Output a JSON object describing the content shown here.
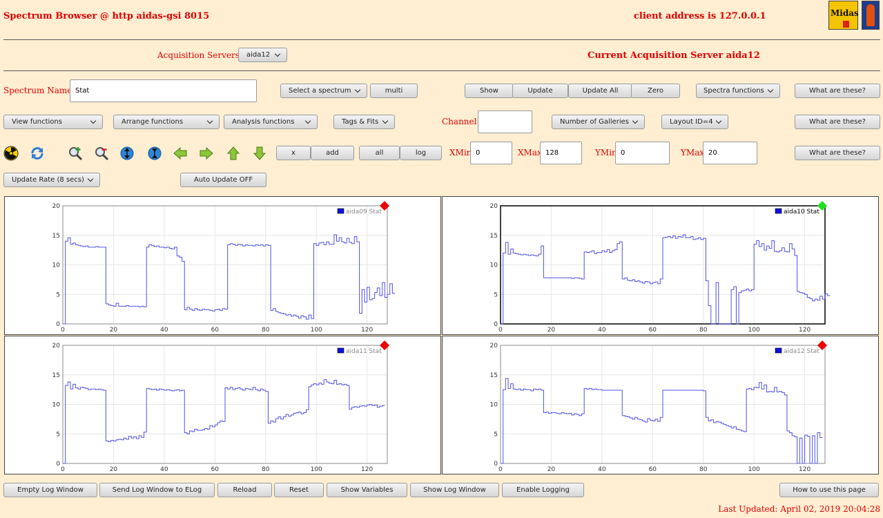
{
  "header": {
    "title": "Spectrum Browser @ http aidas-gsi 8015",
    "client_address": "client address is 127.0.0.1",
    "logo_label": "Midas"
  },
  "servers": {
    "label": "Acquisition Servers",
    "selected": "aida12",
    "current": "Current Acquisition Server aida12"
  },
  "row1": {
    "spectrum_label": "Spectrum Name:",
    "spectrum_value": "Stat",
    "select_spectrum": "Select a spectrum",
    "multi": "multi",
    "show": "Show",
    "update": "Update",
    "update_all": "Update All",
    "zero": "Zero",
    "spectra_functions": "Spectra functions",
    "what": "What are these?"
  },
  "row2": {
    "view": "View functions",
    "arrange": "Arrange functions",
    "analysis": "Analysis functions",
    "tags": "Tags & Fits",
    "channel_label": "Channel:",
    "channel_value": "",
    "galleries": "Number of Galleries",
    "layout": "Layout ID=4",
    "what": "What are these?"
  },
  "row3": {
    "icons": [
      "radiation-icon",
      "refresh-icon",
      "zoom-in-icon",
      "zoom-out-icon",
      "expand-vertical-icon",
      "compress-vertical-icon",
      "arrow-left-icon",
      "arrow-right-icon",
      "arrow-up-icon",
      "arrow-down-icon"
    ],
    "x": "x",
    "add": "add",
    "all": "all",
    "log": "log",
    "xmin_label": "XMin",
    "xmin": "0",
    "xmax_label": "XMax",
    "xmax": "128",
    "ymin_label": "YMin",
    "ymin": "0",
    "ymax_label": "YMax",
    "ymax": "20",
    "what": "What are these?"
  },
  "row4": {
    "update_rate": "Update Rate (8 secs)",
    "auto_update": "Auto Update OFF"
  },
  "chart_data": [
    {
      "type": "line",
      "legend": "aida09 Stat",
      "active": false,
      "status_color": "#ee0000",
      "xlim": [
        0,
        128
      ],
      "ylim": [
        0,
        20
      ],
      "xticks": [
        0,
        20,
        40,
        60,
        80,
        100,
        120
      ],
      "yticks": [
        0,
        5,
        10,
        15,
        20
      ],
      "y": [
        0,
        14,
        14.6,
        13.5,
        13.7,
        13.4,
        13.3,
        13.2,
        13.1,
        13.2,
        13,
        13,
        13,
        13.1,
        13,
        13,
        13,
        3.4,
        3.2,
        3.1,
        3,
        3.5,
        3,
        3,
        3,
        3.1,
        3,
        3,
        3,
        3,
        2.9,
        3,
        2.9,
        13,
        13.4,
        13.3,
        13.1,
        13.2,
        13,
        13,
        12.9,
        13,
        12.8,
        12.7,
        13,
        11.5,
        11.3,
        10.6,
        2.4,
        2.8,
        2.5,
        2.3,
        2.6,
        2.4,
        2.3,
        2.5,
        2.4,
        2.4,
        2.3,
        2.2,
        2.4,
        2.5,
        2.3,
        2.6,
        2.5,
        13.4,
        13.6,
        13.5,
        13.3,
        13.5,
        13.4,
        13.2,
        13.4,
        13.3,
        13.3,
        13.2,
        13.4,
        13.3,
        13.4,
        13.2,
        13.4,
        13.3,
        2.3,
        2.6,
        2.1,
        1.9,
        1.8,
        1.7,
        1.5,
        1.6,
        1.3,
        1.5,
        1.3,
        1.0,
        1.4,
        1.2,
        0.8,
        1.5,
        0.9,
        13.6,
        13.3,
        13.7,
        13.8,
        13.4,
        13.9,
        13.5,
        13.5,
        15.1,
        14.0,
        14.6,
        13.9,
        13.7,
        14.5,
        13.8,
        13.6,
        14.8,
        13.9,
        1.8,
        5.8,
        3.7,
        6.2,
        4.1,
        4.3,
        5.3,
        6.1,
        4.8,
        7.0,
        4.5,
        5.0,
        6.8,
        5.2
      ]
    },
    {
      "type": "line",
      "legend": "aida10 Stat",
      "active": true,
      "status_color": "#22dd22",
      "xlim": [
        0,
        128
      ],
      "ylim": [
        0,
        20
      ],
      "xticks": [
        0,
        20,
        40,
        60,
        80,
        100,
        120
      ],
      "yticks": [
        0,
        5,
        10,
        15,
        20
      ],
      "y": [
        0,
        12,
        13.8,
        11.8,
        12.7,
        12,
        11.9,
        11.8,
        11.7,
        11.8,
        11.7,
        11.6,
        11.7,
        11.6,
        11.5,
        11.8,
        13.2,
        7.8,
        7.8,
        7.8,
        7.8,
        7.8,
        7.8,
        7.8,
        7.8,
        7.8,
        7.8,
        7.8,
        7.7,
        7.8,
        7.8,
        7.7,
        7.6,
        12.2,
        12.1,
        12.2,
        12.4,
        11.9,
        12.1,
        12.1,
        12.4,
        12.2,
        12.6,
        12.1,
        12.4,
        12.6,
        13.6,
        13.9,
        7.6,
        7.8,
        7.4,
        7.3,
        7.5,
        7.2,
        7.3,
        7.1,
        6.9,
        7.2,
        7.1,
        6.8,
        7.0,
        7.1,
        6.8,
        7.6,
        14.6,
        14.7,
        14.8,
        14.6,
        14.9,
        14.5,
        14.8,
        14.7,
        15.1,
        14.6,
        14.6,
        14.8,
        14.3,
        14.4,
        14.6,
        14.3,
        14.5,
        7.3,
        3.1,
        0,
        0,
        7.0,
        0,
        0,
        0,
        0,
        0,
        5.8,
        6.3,
        0,
        5.3,
        5.6,
        5.7,
        5.9,
        5.6,
        5.8,
        13.5,
        14.1,
        13.1,
        13.6,
        12.5,
        13.2,
        12.8,
        14.1,
        12.3,
        12.2,
        12.4,
        12.9,
        12.3,
        12.2,
        13.6,
        12.7,
        11.6,
        5.5,
        5.3,
        5.2,
        5.0,
        4.5,
        4.3,
        3.9,
        4.2,
        4.0,
        4.7,
        4.2,
        5.1,
        4.8
      ]
    },
    {
      "type": "line",
      "legend": "aida11 Stat",
      "active": false,
      "status_color": "#ee0000",
      "xlim": [
        0,
        128
      ],
      "ylim": [
        0,
        20
      ],
      "xticks": [
        0,
        20,
        40,
        60,
        80,
        100,
        120
      ],
      "yticks": [
        0,
        5,
        10,
        15,
        20
      ],
      "y": [
        0,
        13.2,
        13.8,
        12.6,
        13.4,
        12.8,
        12.6,
        12.9,
        12.8,
        12.7,
        12.5,
        12.6,
        12.6,
        12.5,
        12.6,
        12.5,
        12.4,
        3.8,
        3.7,
        3.9,
        3.8,
        4.0,
        4.1,
        4.0,
        4.3,
        4.1,
        4.6,
        4.3,
        4.5,
        4.2,
        4.7,
        4.4,
        5.3,
        12.7,
        12.6,
        12.5,
        12.6,
        12.4,
        12.6,
        12.5,
        12.4,
        12.5,
        12.4,
        12.3,
        12.4,
        12.5,
        12.3,
        12.4,
        5.2,
        5.0,
        5.5,
        5.4,
        5.8,
        5.6,
        5.6,
        5.7,
        5.9,
        5.8,
        6.4,
        6.2,
        6.5,
        6.9,
        7.2,
        7.1,
        12.8,
        12.6,
        12.9,
        12.5,
        12.7,
        12.8,
        12.6,
        12.4,
        12.7,
        12.6,
        12.5,
        12.9,
        12.5,
        12.3,
        12.6,
        12.4,
        12.2,
        6.8,
        7.2,
        7.0,
        7.6,
        7.9,
        7.5,
        7.9,
        8.3,
        8.0,
        8.2,
        8.5,
        8.6,
        8.7,
        8.4,
        8.6,
        9.1,
        13.0,
        13.3,
        13.5,
        13.3,
        13.6,
        13.4,
        14.2,
        13.8,
        13.6,
        13.5,
        14.1,
        13.4,
        13.5,
        13.3,
        13.4,
        13.2,
        9.2,
        9.5,
        9.6,
        9.5,
        9.7,
        9.8,
        9.7,
        9.9,
        10.0,
        9.8,
        9.9,
        9.5,
        9.7,
        9.8
      ]
    },
    {
      "type": "line",
      "legend": "aida12 Stat",
      "active": false,
      "status_color": "#ee0000",
      "xlim": [
        0,
        128
      ],
      "ylim": [
        0,
        20
      ],
      "xticks": [
        0,
        20,
        40,
        60,
        80,
        100,
        120
      ],
      "yticks": [
        0,
        5,
        10,
        15,
        20
      ],
      "y": [
        0,
        12.5,
        14.4,
        12.7,
        13.5,
        12.6,
        12.5,
        12.6,
        12.4,
        12.6,
        12.5,
        12.5,
        12.3,
        12.6,
        12.5,
        12.6,
        12.4,
        8.6,
        8.7,
        8.5,
        8.6,
        8.6,
        8.5,
        8.4,
        8.6,
        8.5,
        8.4,
        8.5,
        8.2,
        8.4,
        8.3,
        8.1,
        8.4,
        12.7,
        12.6,
        12.7,
        12.5,
        12.6,
        12.5,
        12.5,
        12.4,
        12.4,
        12.4,
        12.4,
        12.4,
        12.4,
        12.4,
        12.4,
        8.1,
        8.0,
        7.9,
        7.7,
        7.5,
        7.8,
        7.5,
        7.4,
        7.2,
        7.0,
        7.6,
        7.3,
        7.2,
        7.5,
        7.1,
        7.8,
        12.4,
        12.4,
        12.4,
        12.4,
        12.4,
        12.4,
        12.4,
        12.4,
        12.4,
        12.4,
        12.4,
        12.4,
        12.4,
        12.4,
        12.4,
        12.4,
        12.3,
        7.8,
        7.2,
        7.4,
        6.9,
        7.1,
        7.0,
        6.8,
        6.6,
        6.4,
        6.3,
        6.0,
        6.2,
        5.8,
        5.7,
        5.5,
        5.4,
        12.6,
        12.7,
        12.5,
        12.9,
        12.8,
        13.7,
        12.6,
        13.3,
        12.1,
        12.2,
        12.1,
        12.9,
        12.1,
        12.2,
        12.0,
        11.6,
        5.5,
        5.2,
        4.7,
        4.5,
        0,
        4.3,
        0,
        4.8,
        4.6,
        0,
        4.7,
        0,
        5.2,
        4.4
      ]
    }
  ],
  "bottom": {
    "empty_log": "Empty Log Window",
    "send_log": "Send Log Window to ELog",
    "reload": "Reload",
    "reset": "Reset",
    "show_vars": "Show Variables",
    "show_log": "Show Log Window",
    "enable_logging": "Enable Logging",
    "how_to": "How to use this page",
    "last_updated": "Last Updated: April 02, 2019 20:04:28"
  }
}
